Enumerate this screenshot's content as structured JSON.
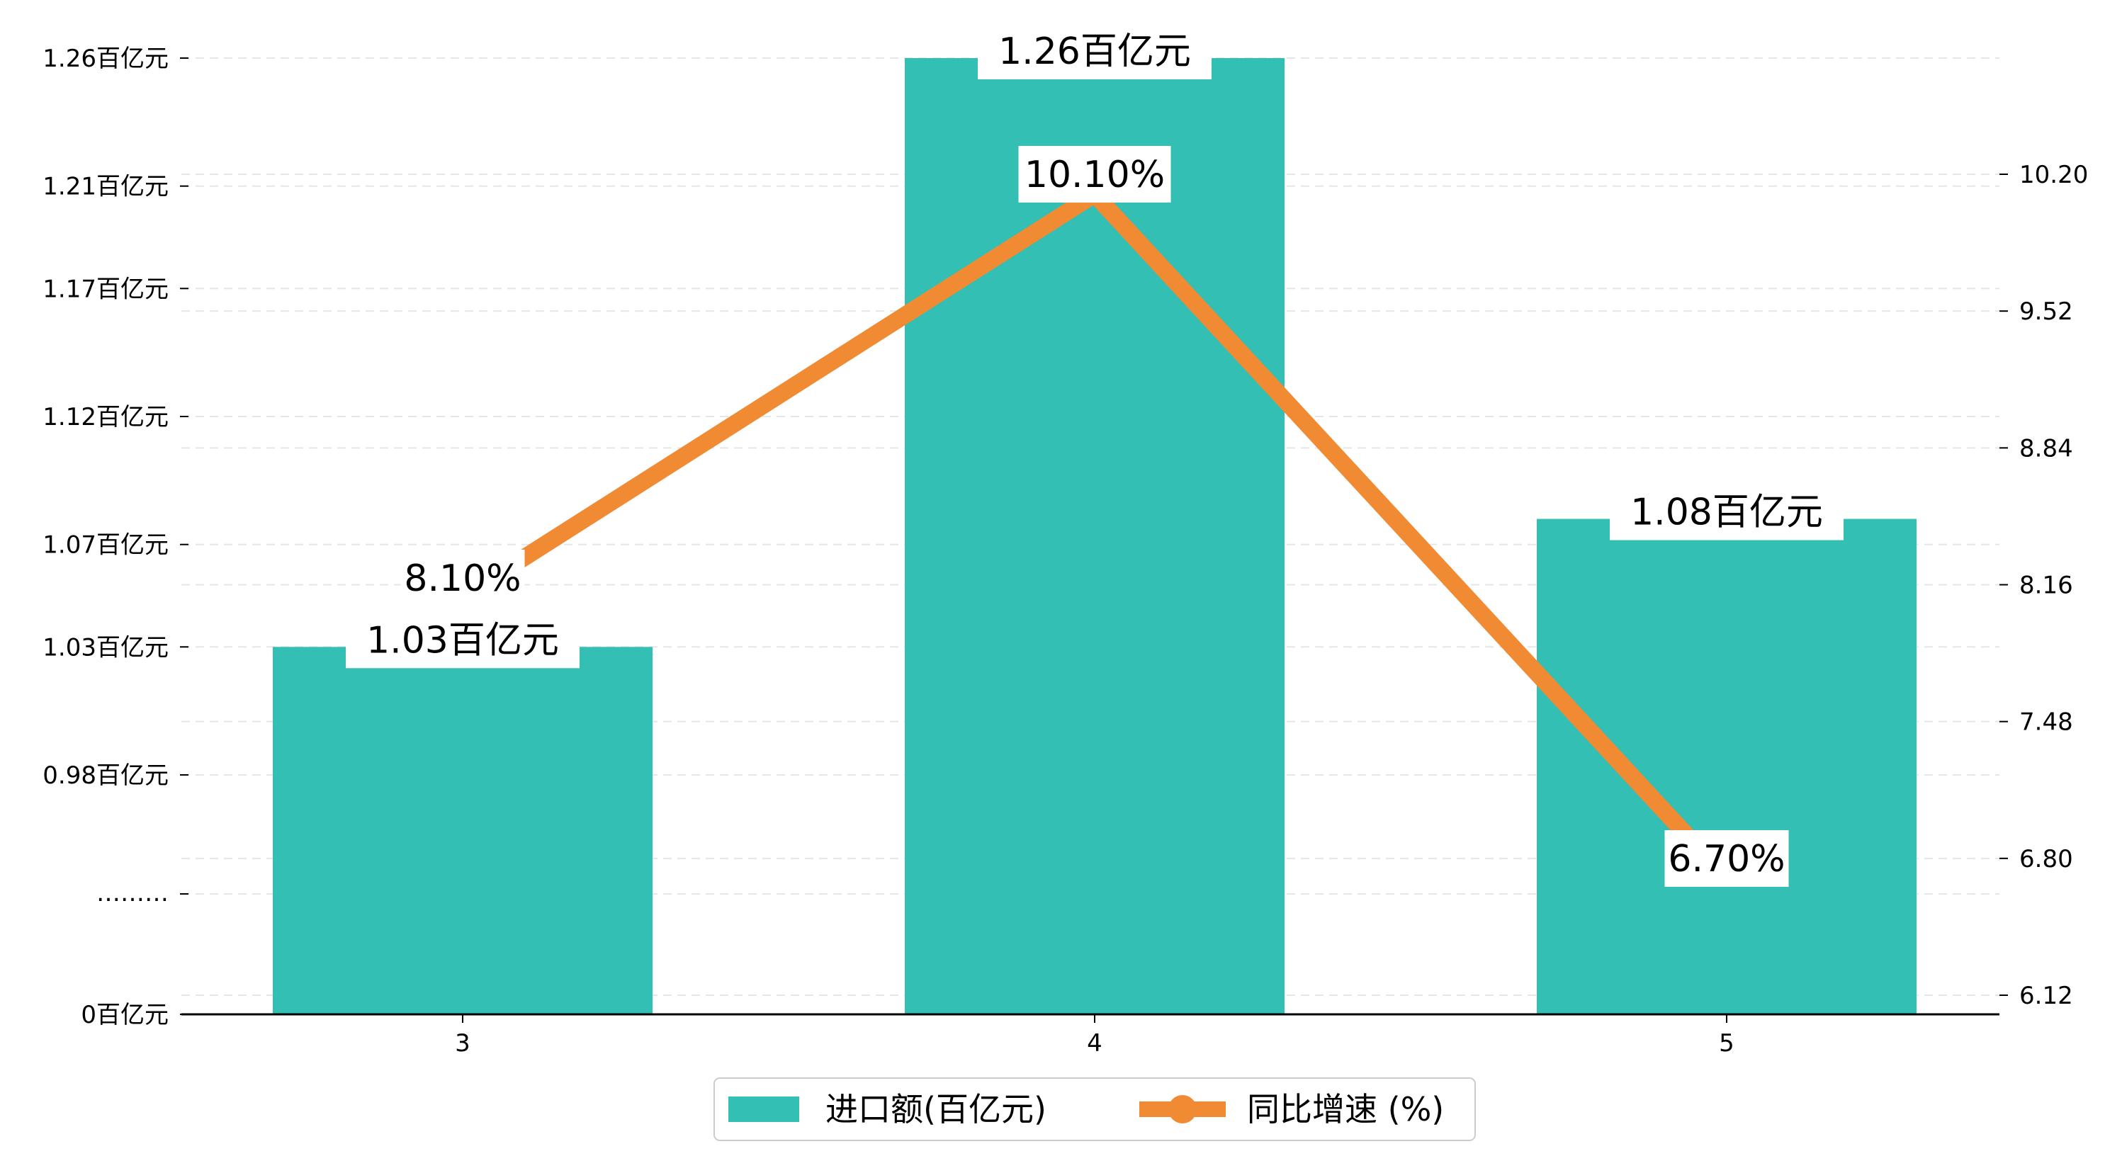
{
  "chart_data": {
    "type": "bar",
    "categories": [
      "3",
      "4",
      "5"
    ],
    "series": [
      {
        "name": "进口额(百亿元)",
        "type": "bar",
        "axis": "left",
        "values": [
          1.03,
          1.26,
          1.08
        ],
        "labels": [
          "1.03百亿元",
          "1.26百亿元",
          "1.08百亿元"
        ],
        "color": "#33bfb4"
      },
      {
        "name": "同比增速 (%)",
        "type": "line",
        "axis": "right",
        "values": [
          8.1,
          10.1,
          6.7
        ],
        "labels": [
          "8.10%",
          "10.10%",
          "6.70%"
        ],
        "color": "#f08a33"
      }
    ],
    "left_axis": {
      "tick_values": [
        0,
        0.98,
        1.03,
        1.07,
        1.12,
        1.17,
        1.21,
        1.26
      ],
      "tick_labels": [
        "0百亿元",
        "0.98百亿元",
        "1.03百亿元",
        "1.07百亿元",
        "1.12百亿元",
        "1.17百亿元",
        "1.21百亿元",
        "1.26百亿元"
      ],
      "break_label": "………"
    },
    "right_axis": {
      "ylim": [
        6.12,
        10.2
      ],
      "tick_values": [
        6.12,
        6.8,
        7.48,
        8.16,
        8.84,
        9.52,
        10.2
      ],
      "tick_labels": [
        "6.12",
        "6.80",
        "7.48",
        "8.16",
        "8.84",
        "9.52",
        "10.20"
      ]
    },
    "legend_position": "bottom-center",
    "grid": "horizontal dashed",
    "title": "",
    "xlabel": "",
    "ylabel": ""
  }
}
